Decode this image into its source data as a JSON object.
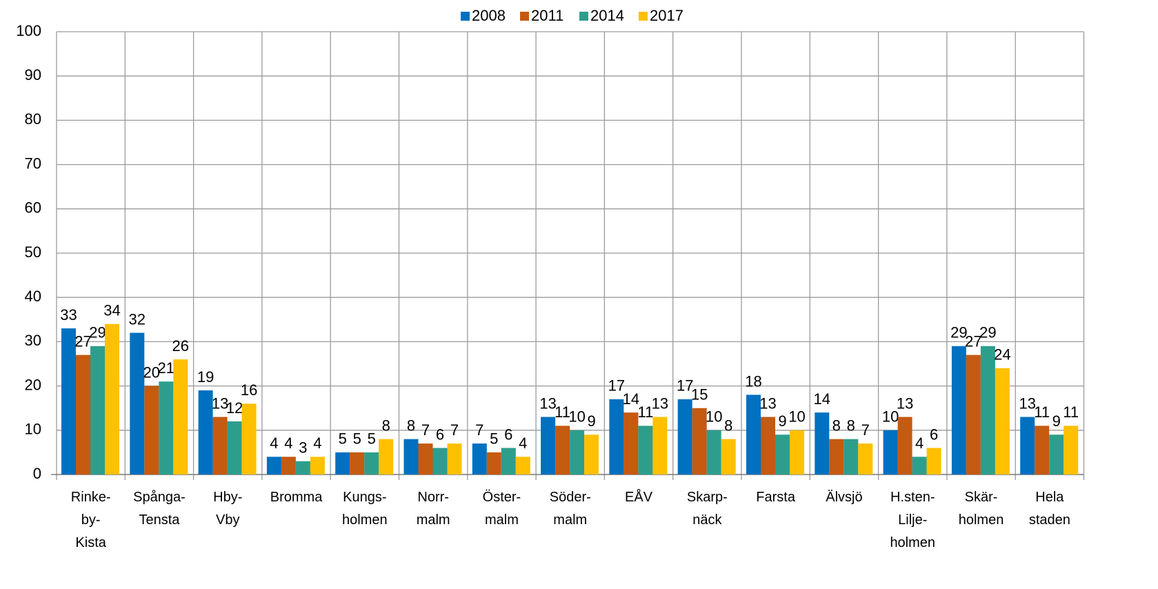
{
  "chart_data": {
    "type": "bar",
    "categories": [
      "Rinke-\nby-\nKista",
      "Spånga-\nTensta",
      "Hby-\nVby",
      "Bromma",
      "Kungs-\nholmen",
      "Norr-\nmalm",
      "Öster-\nmalm",
      "Söder-\nmalm",
      "EÅV",
      "Skarp-\nnäck",
      "Farsta",
      "Älvsjö",
      "H.sten-\nLilje-\nholmen",
      "Skär-\nholmen",
      "Hela\nstaden"
    ],
    "series": [
      {
        "name": "2008",
        "color": "#0070c0",
        "values": [
          33,
          32,
          19,
          4,
          5,
          8,
          7,
          13,
          17,
          17,
          18,
          14,
          10,
          29,
          13
        ]
      },
      {
        "name": "2011",
        "color": "#c55a11",
        "values": [
          27,
          20,
          13,
          4,
          5,
          7,
          5,
          11,
          14,
          15,
          13,
          8,
          13,
          27,
          11
        ]
      },
      {
        "name": "2014",
        "color": "#2e9e8c",
        "values": [
          29,
          21,
          12,
          3,
          5,
          6,
          6,
          10,
          11,
          10,
          9,
          8,
          4,
          29,
          9
        ]
      },
      {
        "name": "2017",
        "color": "#ffc000",
        "values": [
          34,
          26,
          16,
          4,
          8,
          7,
          4,
          9,
          13,
          8,
          10,
          7,
          6,
          24,
          11
        ]
      }
    ],
    "ylim": [
      0,
      100
    ],
    "yticks": [
      0,
      10,
      20,
      30,
      40,
      50,
      60,
      70,
      80,
      90,
      100
    ],
    "grid": true,
    "legend": "top"
  }
}
